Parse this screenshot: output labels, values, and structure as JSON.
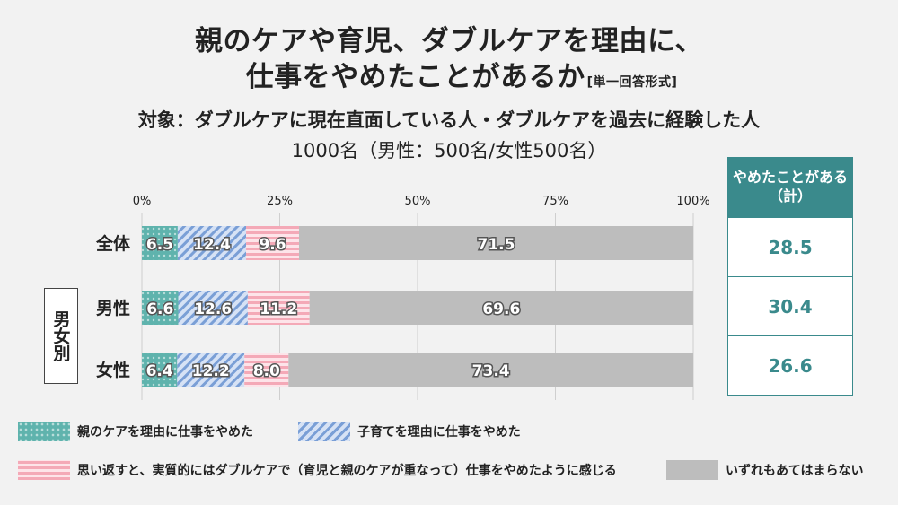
{
  "title": {
    "line1": "親のケアや育児、ダブルケアを理由に、",
    "line2": "仕事をやめたことがあるか",
    "line2_note": "[単一回答形式]",
    "subject": "対象：ダブルケアに現在直面している人・ダブルケアを過去に経験した人",
    "sample": "1000名（男性：500名/女性500名）"
  },
  "group_label": "男女別",
  "side_table": {
    "header": "やめたことがある（計）",
    "values": [
      "28.5",
      "30.4",
      "26.6"
    ]
  },
  "colors": {
    "teal": "#5fb3ad",
    "blue": "#7a9fd6",
    "pink": "#f4a9b7",
    "gray": "#bdbdbd",
    "header_bg": "#3a8a8c"
  },
  "chart_data": {
    "type": "bar",
    "orientation": "horizontal",
    "stacked": true,
    "percent": true,
    "categories": [
      "全体",
      "男性",
      "女性"
    ],
    "xlim": [
      0,
      100
    ],
    "ticks": [
      "0%",
      "25%",
      "50%",
      "75%",
      "100%"
    ],
    "tick_values": [
      0,
      25,
      50,
      75,
      100
    ],
    "grid": true,
    "legend_position": "bottom",
    "series": [
      {
        "name": "親のケアを理由に仕事をやめた",
        "values": [
          6.5,
          6.6,
          6.4
        ],
        "color": "#5fb3ad",
        "pattern": "dots"
      },
      {
        "name": "子育てを理由に仕事をやめた",
        "values": [
          12.4,
          12.6,
          12.2
        ],
        "color": "#7a9fd6",
        "pattern": "diagonal"
      },
      {
        "name": "思い返すと、実質的にはダブルケアで（育児と親のケアが重なって）仕事をやめたように感じる",
        "values": [
          9.6,
          11.2,
          8.0
        ],
        "color": "#f4a9b7",
        "pattern": "horizontal"
      },
      {
        "name": "いずれもあてはまらない",
        "values": [
          71.5,
          69.6,
          73.4
        ],
        "color": "#bdbdbd",
        "pattern": "solid"
      }
    ]
  }
}
